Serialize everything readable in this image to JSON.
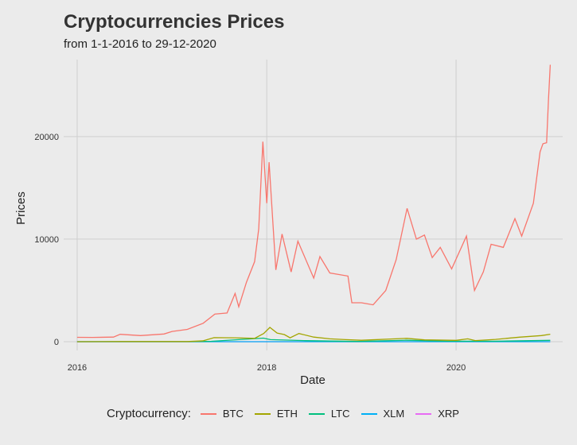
{
  "chart_data": {
    "type": "line",
    "title": "Cryptocurrencies Prices",
    "subtitle": "from 1-1-2016 to 29-12-2020",
    "xlabel": "Date",
    "ylabel": "Prices",
    "x_ticks": [
      "2016",
      "2018",
      "2020"
    ],
    "y_ticks": [
      0,
      10000,
      20000
    ],
    "xlim": [
      "2016-01-01",
      "2020-12-29"
    ],
    "ylim": [
      0,
      27000
    ],
    "grid": true,
    "legend_title": "Cryptocurrency:",
    "legend_position": "bottom",
    "series": [
      {
        "name": "BTC",
        "color": "#F8766D",
        "points": [
          [
            "2016-01-01",
            430
          ],
          [
            "2016-03-01",
            420
          ],
          [
            "2016-05-20",
            450
          ],
          [
            "2016-06-15",
            720
          ],
          [
            "2016-09-01",
            600
          ],
          [
            "2016-12-01",
            750
          ],
          [
            "2017-01-01",
            1000
          ],
          [
            "2017-03-01",
            1200
          ],
          [
            "2017-05-01",
            1800
          ],
          [
            "2017-06-15",
            2700
          ],
          [
            "2017-08-01",
            2800
          ],
          [
            "2017-09-01",
            4700
          ],
          [
            "2017-09-15",
            3400
          ],
          [
            "2017-10-15",
            5800
          ],
          [
            "2017-11-15",
            7800
          ],
          [
            "2017-12-01",
            11000
          ],
          [
            "2017-12-17",
            19500
          ],
          [
            "2018-01-01",
            13500
          ],
          [
            "2018-01-10",
            17500
          ],
          [
            "2018-02-05",
            7000
          ],
          [
            "2018-03-01",
            10500
          ],
          [
            "2018-04-05",
            6800
          ],
          [
            "2018-05-01",
            9800
          ],
          [
            "2018-07-01",
            6200
          ],
          [
            "2018-07-25",
            8300
          ],
          [
            "2018-09-01",
            6700
          ],
          [
            "2018-11-10",
            6400
          ],
          [
            "2018-11-25",
            3800
          ],
          [
            "2019-01-01",
            3800
          ],
          [
            "2019-02-15",
            3600
          ],
          [
            "2019-04-05",
            5000
          ],
          [
            "2019-05-15",
            8000
          ],
          [
            "2019-06-26",
            13000
          ],
          [
            "2019-08-01",
            10000
          ],
          [
            "2019-09-01",
            10400
          ],
          [
            "2019-10-01",
            8200
          ],
          [
            "2019-11-01",
            9200
          ],
          [
            "2019-12-15",
            7100
          ],
          [
            "2020-02-10",
            10300
          ],
          [
            "2020-03-12",
            5000
          ],
          [
            "2020-04-15",
            6800
          ],
          [
            "2020-05-15",
            9500
          ],
          [
            "2020-07-01",
            9200
          ],
          [
            "2020-08-15",
            12000
          ],
          [
            "2020-09-10",
            10300
          ],
          [
            "2020-10-25",
            13500
          ],
          [
            "2020-11-20",
            18500
          ],
          [
            "2020-12-01",
            19300
          ],
          [
            "2020-12-15",
            19400
          ],
          [
            "2020-12-22",
            23500
          ],
          [
            "2020-12-29",
            27000
          ]
        ]
      },
      {
        "name": "ETH",
        "color": "#A3A500",
        "points": [
          [
            "2016-01-01",
            1
          ],
          [
            "2016-06-15",
            14
          ],
          [
            "2017-03-01",
            20
          ],
          [
            "2017-05-01",
            90
          ],
          [
            "2017-06-12",
            400
          ],
          [
            "2017-09-01",
            380
          ],
          [
            "2017-11-15",
            330
          ],
          [
            "2017-12-20",
            800
          ],
          [
            "2018-01-13",
            1400
          ],
          [
            "2018-02-10",
            850
          ],
          [
            "2018-03-10",
            700
          ],
          [
            "2018-04-01",
            380
          ],
          [
            "2018-05-05",
            800
          ],
          [
            "2018-07-01",
            450
          ],
          [
            "2018-09-01",
            280
          ],
          [
            "2018-11-01",
            200
          ],
          [
            "2019-01-01",
            140
          ],
          [
            "2019-06-26",
            330
          ],
          [
            "2019-09-01",
            180
          ],
          [
            "2020-01-01",
            130
          ],
          [
            "2020-02-15",
            280
          ],
          [
            "2020-03-15",
            110
          ],
          [
            "2020-06-01",
            230
          ],
          [
            "2020-09-01",
            440
          ],
          [
            "2020-11-25",
            600
          ],
          [
            "2020-12-29",
            730
          ]
        ]
      },
      {
        "name": "LTC",
        "color": "#00BF7D",
        "points": [
          [
            "2016-01-01",
            3
          ],
          [
            "2017-03-01",
            5
          ],
          [
            "2017-06-01",
            40
          ],
          [
            "2017-12-19",
            350
          ],
          [
            "2018-01-15",
            200
          ],
          [
            "2018-06-01",
            100
          ],
          [
            "2018-12-15",
            25
          ],
          [
            "2019-06-22",
            140
          ],
          [
            "2019-12-01",
            45
          ],
          [
            "2020-06-01",
            45
          ],
          [
            "2020-12-29",
            130
          ]
        ]
      },
      {
        "name": "XLM",
        "color": "#00B0F6",
        "points": [
          [
            "2016-01-01",
            0.002
          ],
          [
            "2017-12-01",
            0.2
          ],
          [
            "2018-01-04",
            0.9
          ],
          [
            "2019-01-01",
            0.12
          ],
          [
            "2020-12-29",
            0.15
          ]
        ]
      },
      {
        "name": "XRP",
        "color": "#E76BF3",
        "points": [
          [
            "2016-01-01",
            0.006
          ],
          [
            "2017-12-01",
            0.3
          ],
          [
            "2018-01-04",
            3.3
          ],
          [
            "2019-01-01",
            0.35
          ],
          [
            "2020-12-29",
            0.5
          ]
        ]
      }
    ]
  }
}
